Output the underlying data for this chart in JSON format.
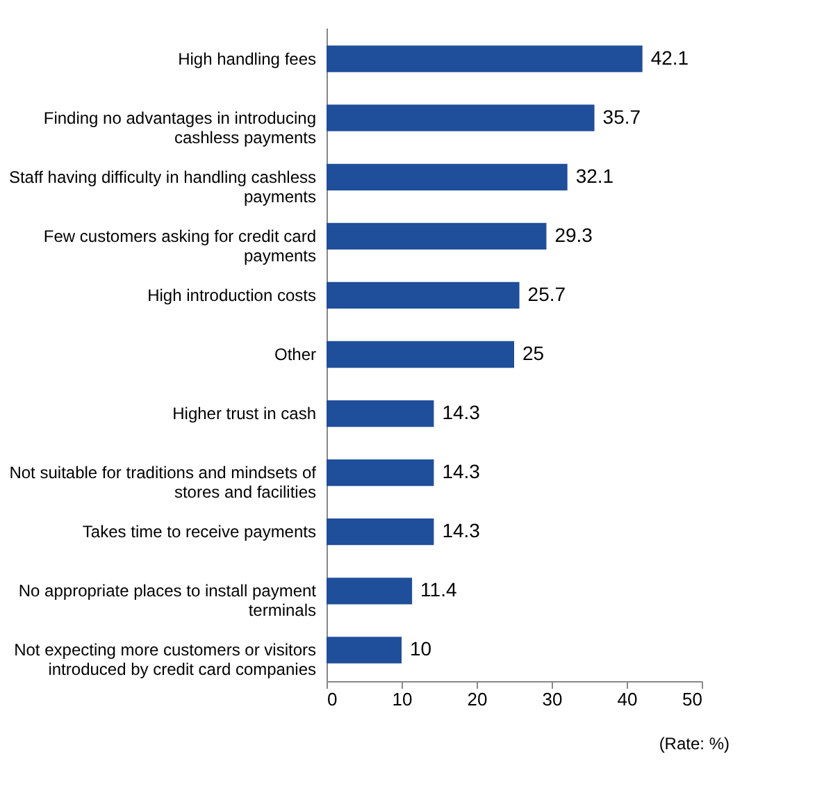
{
  "chart_data": {
    "type": "bar",
    "orientation": "horizontal",
    "categories": [
      "High handling fees",
      "Finding no advantages in introducing cashless payments",
      "Staff having difficulty in handling cashless payments",
      "Few customers asking for credit card payments",
      "High introduction costs",
      "Other",
      "Higher trust in cash",
      "Not suitable for traditions and mindsets of stores and facilities",
      "Takes time to receive payments",
      "No appropriate places to install payment terminals",
      "Not expecting more customers or visitors introduced by credit card companies"
    ],
    "values": [
      42.1,
      35.7,
      32.1,
      29.3,
      25.7,
      25,
      14.3,
      14.3,
      14.3,
      11.4,
      10
    ],
    "color": "#1f4e9a",
    "xlim": [
      0,
      50
    ],
    "xticks": [
      0,
      10,
      20,
      30,
      40,
      50
    ],
    "data_labels": true,
    "grid": false,
    "annotations": [
      "(Rate: %)"
    ]
  }
}
